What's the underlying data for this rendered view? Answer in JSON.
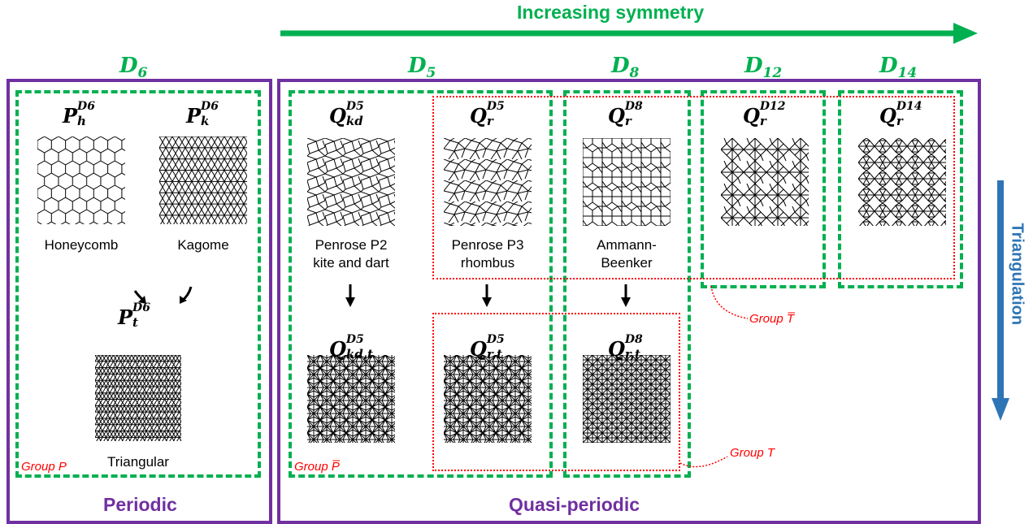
{
  "header": {
    "increasing": "Increasing symmetry"
  },
  "vertical": {
    "triangulation": "Triangulation"
  },
  "symmetry_groups": {
    "d6": {
      "base": "D",
      "sub": "6"
    },
    "d5": {
      "base": "D",
      "sub": "5"
    },
    "d8": {
      "base": "D",
      "sub": "8"
    },
    "d12": {
      "base": "D",
      "sub": "12"
    },
    "d14": {
      "base": "D",
      "sub": "14"
    }
  },
  "tilings": {
    "ph": {
      "base": "P",
      "sup": "D6",
      "sub": "h",
      "name": "Honeycomb"
    },
    "pk": {
      "base": "P",
      "sup": "D6",
      "sub": "k",
      "name": "Kagome"
    },
    "pt": {
      "base": "P",
      "sup": "D6",
      "sub": "t",
      "name": "Triangular"
    },
    "qkd": {
      "base": "Q",
      "sup": "D5",
      "sub": "kd",
      "name_line1": "Penrose P2",
      "name_line2": "kite and dart"
    },
    "qr5": {
      "base": "Q",
      "sup": "D5",
      "sub": "r",
      "name_line1": "Penrose P3",
      "name_line2": "rhombus"
    },
    "qr8": {
      "base": "Q",
      "sup": "D8",
      "sub": "r",
      "name_line1": "Ammann-",
      "name_line2": "Beenker"
    },
    "qr12": {
      "base": "Q",
      "sup": "D12",
      "sub": "r"
    },
    "qr14": {
      "base": "Q",
      "sup": "D14",
      "sub": "r"
    },
    "qkdt": {
      "base": "Q",
      "sup": "D5",
      "sub": "kd,t"
    },
    "qrt5": {
      "base": "Q",
      "sup": "D5",
      "sub": "r,t"
    },
    "qrt8": {
      "base": "Q",
      "sup": "D8",
      "sub": "r,t"
    }
  },
  "groups": {
    "p": "Group P",
    "pbar": "Group P̅",
    "t": "Group T",
    "tbar": "Group T̅"
  },
  "footer": {
    "periodic": "Periodic",
    "quasi": "Quasi-periodic"
  },
  "colors": {
    "purple": "#7030A0",
    "green": "#00B050",
    "red": "#FF0000",
    "blue": "#2E75B6"
  }
}
